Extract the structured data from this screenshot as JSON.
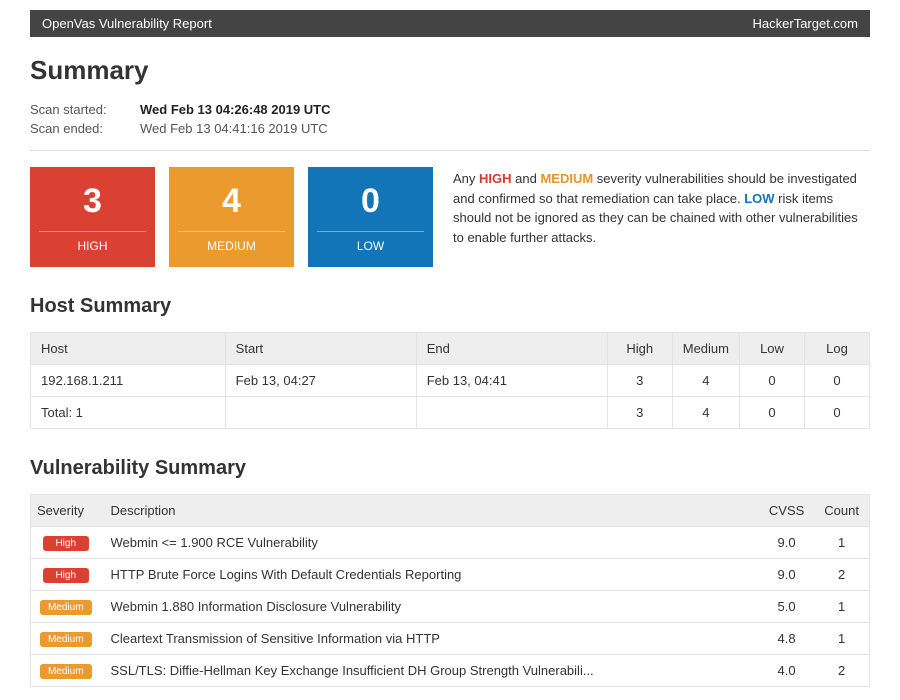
{
  "topbar": {
    "left": "OpenVas Vulnerability Report",
    "right": "HackerTarget.com"
  },
  "summary": {
    "title": "Summary",
    "started_label": "Scan started:",
    "started_value": "Wed Feb 13 04:26:48 2019 UTC",
    "ended_label": "Scan ended:",
    "ended_value": "Wed Feb 13 04:41:16 2019 UTC"
  },
  "severity_cards": {
    "high": {
      "count": "3",
      "label": "HIGH",
      "color": "#da4133"
    },
    "medium": {
      "count": "4",
      "label": "MEDIUM",
      "color": "#eb9a2e"
    },
    "low": {
      "count": "0",
      "label": "LOW",
      "color": "#1175b8"
    }
  },
  "severity_text": {
    "p1a": "Any ",
    "high": "HIGH",
    "p1b": " and ",
    "medium": "MEDIUM",
    "p1c": " severity vulnerabilities should be investigated and confirmed so that remediation can take place. ",
    "low": "LOW",
    "p1d": " risk items should not be ignored as they can be chained with other vulnerabilities to enable further attacks."
  },
  "host_summary": {
    "title": "Host Summary",
    "headers": {
      "host": "Host",
      "start": "Start",
      "end": "End",
      "high": "High",
      "medium": "Medium",
      "low": "Low",
      "log": "Log"
    },
    "rows": [
      {
        "host": "192.168.1.211",
        "start": "Feb 13, 04:27",
        "end": "Feb 13, 04:41",
        "high": "3",
        "medium": "4",
        "low": "0",
        "log": "0"
      }
    ],
    "total": {
      "label": "Total: 1",
      "high": "3",
      "medium": "4",
      "low": "0",
      "log": "0"
    }
  },
  "vuln_summary": {
    "title": "Vulnerability Summary",
    "headers": {
      "severity": "Severity",
      "description": "Description",
      "cvss": "CVSS",
      "count": "Count"
    },
    "rows": [
      {
        "sev": "High",
        "sev_color": "#da4133",
        "desc": "Webmin <= 1.900 RCE Vulnerability",
        "cvss": "9.0",
        "count": "1"
      },
      {
        "sev": "High",
        "sev_color": "#da4133",
        "desc": "HTTP Brute Force Logins With Default Credentials Reporting",
        "cvss": "9.0",
        "count": "2"
      },
      {
        "sev": "Medium",
        "sev_color": "#eb9a2e",
        "desc": "Webmin 1.880 Information Disclosure Vulnerability",
        "cvss": "5.0",
        "count": "1"
      },
      {
        "sev": "Medium",
        "sev_color": "#eb9a2e",
        "desc": "Cleartext Transmission of Sensitive Information via HTTP",
        "cvss": "4.8",
        "count": "1"
      },
      {
        "sev": "Medium",
        "sev_color": "#eb9a2e",
        "desc": "SSL/TLS: Diffie-Hellman Key Exchange Insufficient DH Group Strength Vulnerabili...",
        "cvss": "4.0",
        "count": "2"
      }
    ]
  }
}
